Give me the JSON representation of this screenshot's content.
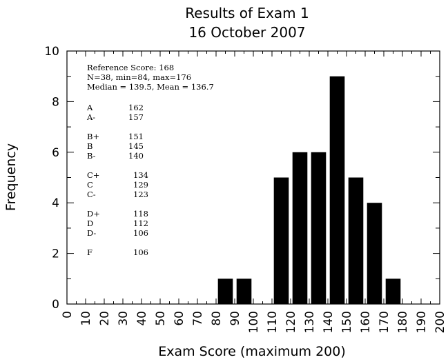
{
  "chart_data": {
    "type": "bar",
    "title": "Results of Exam 1",
    "subtitle": "16 October 2007",
    "xlabel": "Exam Score (maximum 200)",
    "ylabel": "Frequency",
    "xlim": [
      0,
      200
    ],
    "ylim": [
      0,
      10
    ],
    "x_ticks": [
      "0",
      "10",
      "20",
      "30",
      "40",
      "50",
      "60",
      "70",
      "80",
      "90",
      "100",
      "110",
      "120",
      "130",
      "140",
      "150",
      "160",
      "170",
      "180",
      "190",
      "200"
    ],
    "y_ticks": [
      "0",
      "2",
      "4",
      "6",
      "8",
      "10"
    ],
    "bin_width": 10,
    "bins": [
      {
        "x": 80,
        "count": 1
      },
      {
        "x": 90,
        "count": 1
      },
      {
        "x": 110,
        "count": 5
      },
      {
        "x": 120,
        "count": 6
      },
      {
        "x": 130,
        "count": 6
      },
      {
        "x": 140,
        "count": 9
      },
      {
        "x": 150,
        "count": 5
      },
      {
        "x": 160,
        "count": 4
      },
      {
        "x": 170,
        "count": 1
      }
    ],
    "annotations": {
      "summary": [
        "Reference Score: 168",
        "N=38, min=84, max=176",
        "Median = 139.5, Mean = 136.7"
      ],
      "grade_groups": [
        [
          {
            "grade": "A",
            "score": "162"
          },
          {
            "grade": "A-",
            "score": "157"
          }
        ],
        [
          {
            "grade": "B+",
            "score": "151"
          },
          {
            "grade": "B",
            "score": "145"
          },
          {
            "grade": "B-",
            "score": "140"
          }
        ],
        [
          {
            "grade": "C+",
            "score": "134"
          },
          {
            "grade": "C",
            "score": "129"
          },
          {
            "grade": "C-",
            "score": "123"
          }
        ],
        [
          {
            "grade": "D+",
            "score": "118"
          },
          {
            "grade": "D",
            "score": "112"
          },
          {
            "grade": "D-",
            "score": "106"
          }
        ],
        [
          {
            "grade": "F",
            "score": "106"
          }
        ]
      ]
    }
  }
}
